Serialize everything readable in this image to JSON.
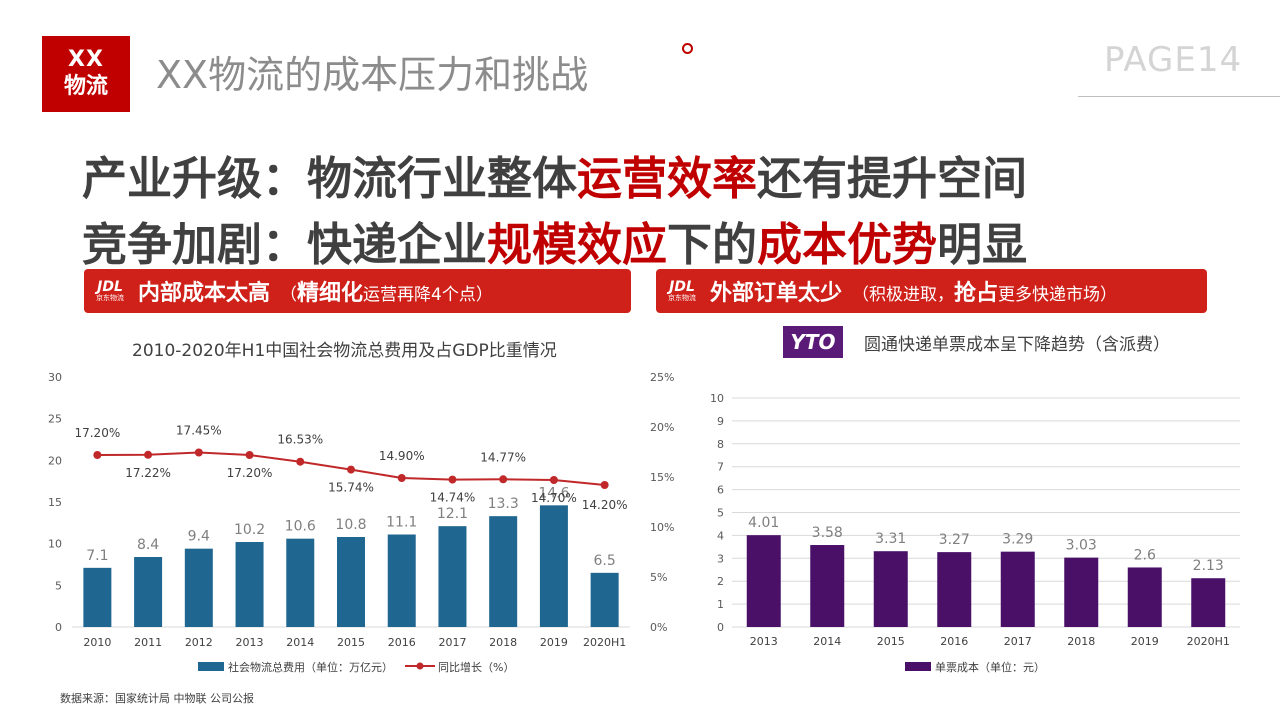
{
  "header": {
    "logo_line1": "XX",
    "logo_line2": "物流",
    "title": "XX物流的成本压力和挑战",
    "page": "PAGE14"
  },
  "headline": {
    "line1_prefix": "产业升级：物流行业整体",
    "line1_highlight": "运营效率",
    "line1_suffix": "还有提升空间",
    "line2_prefix": "竞争加剧：快递企业",
    "line2_highlight1": "规模效应",
    "line2_middle": "下的",
    "line2_highlight2": "成本优势",
    "line2_suffix": "明显"
  },
  "banners": {
    "left": {
      "logo_big": "JDL",
      "logo_small": "京东物流",
      "main": "内部成本太高",
      "sub_open": "（",
      "sub_bold": "精细化",
      "sub_rest": "运营再降4个点）"
    },
    "right": {
      "logo_big": "JDL",
      "logo_small": "京东物流",
      "main": "外部订单太少",
      "sub_open": "（积极进取，",
      "sub_bold": "抢占",
      "sub_rest": "更多快递市场）"
    }
  },
  "yto_logo_text": "YTO",
  "source": "数据来源：国家统计局 中物联     公司公报",
  "colors": {
    "red": "#c00000",
    "banner_red": "#d0201a",
    "bar_blue": "#1f6690",
    "line_red": "#c0282a",
    "bar_purple": "#4a1068",
    "grid": "#d9d9d9",
    "axis_text": "#595959"
  },
  "chart_data": [
    {
      "type": "bar",
      "title": "2010-2020年H1中国社会物流总费用及占GDP比重情况",
      "categories": [
        "2010",
        "2011",
        "2012",
        "2013",
        "2014",
        "2015",
        "2016",
        "2017",
        "2018",
        "2019",
        "2020H1"
      ],
      "series": [
        {
          "name": "社会物流总费用（单位：万亿元）",
          "type": "bar",
          "axis": "left",
          "values": [
            7.1,
            8.4,
            9.4,
            10.2,
            10.6,
            10.8,
            11.1,
            12.1,
            13.3,
            14.6,
            6.5
          ],
          "labels": [
            "7.1",
            "8.4",
            "9.4",
            "10.2",
            "10.6",
            "10.8",
            "11.1",
            "12.1",
            "13.3",
            "14.6",
            "6.5"
          ]
        },
        {
          "name": "同比增长（%）",
          "type": "line",
          "axis": "right",
          "values": [
            17.2,
            17.22,
            17.45,
            17.2,
            16.53,
            15.74,
            14.9,
            14.74,
            14.77,
            14.7,
            14.2
          ],
          "labels": [
            "17.20%",
            "17.22%",
            "17.45%",
            "17.20%",
            "16.53%",
            "15.74%",
            "14.90%",
            "14.74%",
            "14.77%",
            "14.70%",
            "14.20%"
          ]
        }
      ],
      "y_left": {
        "min": 0,
        "max": 30,
        "ticks": [
          "0",
          "5",
          "10",
          "15",
          "20",
          "25",
          "30"
        ]
      },
      "y_right": {
        "min": 0,
        "max": 25,
        "ticks": [
          "0%",
          "5%",
          "10%",
          "15%",
          "20%",
          "25%"
        ]
      },
      "grid": false,
      "legend": "bottom"
    },
    {
      "type": "bar",
      "title": "圆通快递单票成本呈下降趋势（含派费）",
      "categories": [
        "2013",
        "2014",
        "2015",
        "2016",
        "2017",
        "2018",
        "2019",
        "2020H1"
      ],
      "series": [
        {
          "name": "单票成本（单位：元）",
          "values": [
            4.01,
            3.58,
            3.31,
            3.27,
            3.29,
            3.03,
            2.6,
            2.13
          ],
          "labels": [
            "4.01",
            "3.58",
            "3.31",
            "3.27",
            "3.29",
            "3.03",
            "2.6",
            "2.13"
          ]
        }
      ],
      "y": {
        "min": 0,
        "max": 10,
        "ticks": [
          "0",
          "1",
          "2",
          "3",
          "4",
          "5",
          "6",
          "7",
          "8",
          "9",
          "10"
        ]
      },
      "grid": true,
      "legend": "bottom"
    }
  ]
}
